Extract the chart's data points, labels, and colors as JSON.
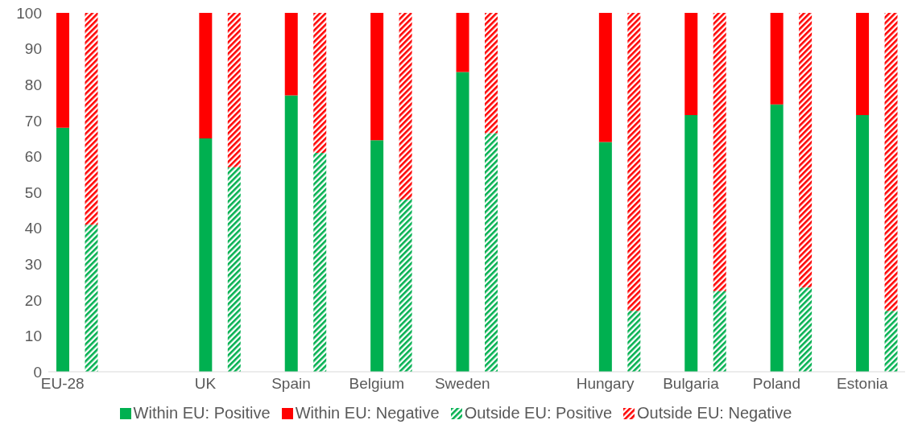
{
  "chart_data": {
    "type": "bar",
    "stacked": true,
    "categories": [
      "EU-28",
      null,
      null,
      null,
      null,
      "UK",
      null,
      null,
      "Spain",
      null,
      null,
      "Belgium",
      null,
      null,
      "Sweden",
      null,
      null,
      null,
      null,
      "Hungary",
      null,
      null,
      "Bulgaria",
      null,
      null,
      "Poland",
      null,
      null,
      "Estonia",
      null
    ],
    "series": [
      {
        "name": "Within EU: Positive",
        "color": "#00b050",
        "values": [
          68,
          null,
          null,
          null,
          null,
          65,
          null,
          null,
          77,
          null,
          null,
          64.5,
          null,
          null,
          83.5,
          null,
          null,
          null,
          null,
          64,
          null,
          null,
          71.5,
          null,
          null,
          74.5,
          null,
          null,
          71.5,
          null
        ]
      },
      {
        "name": "Within EU: Negative",
        "color": "#ff0000",
        "values": [
          32,
          null,
          null,
          null,
          null,
          35,
          null,
          null,
          23,
          null,
          null,
          35.5,
          null,
          null,
          16.5,
          null,
          null,
          null,
          null,
          36,
          null,
          null,
          28.5,
          null,
          null,
          25.5,
          null,
          null,
          28.5,
          null
        ]
      },
      {
        "name": "Outside EU: Positive",
        "color": "#00b050",
        "values": [
          null,
          41,
          null,
          null,
          null,
          null,
          57,
          null,
          null,
          61,
          null,
          null,
          48,
          null,
          null,
          66.5,
          null,
          null,
          null,
          null,
          17,
          null,
          null,
          22.5,
          null,
          null,
          23.5,
          null,
          null,
          17
        ]
      },
      {
        "name": "Outside EU: Negative",
        "color": "#ff0000",
        "values": [
          null,
          59,
          null,
          null,
          null,
          null,
          43,
          null,
          null,
          39,
          null,
          null,
          52,
          null,
          null,
          33.5,
          null,
          null,
          null,
          null,
          83,
          null,
          null,
          77.5,
          null,
          null,
          76.5,
          null,
          null,
          83
        ]
      }
    ],
    "ylim": [
      0,
      100
    ],
    "yticks": [
      0,
      10,
      20,
      30,
      40,
      50,
      60,
      70,
      80,
      90,
      100
    ],
    "grid": false,
    "legend": "bottom"
  }
}
